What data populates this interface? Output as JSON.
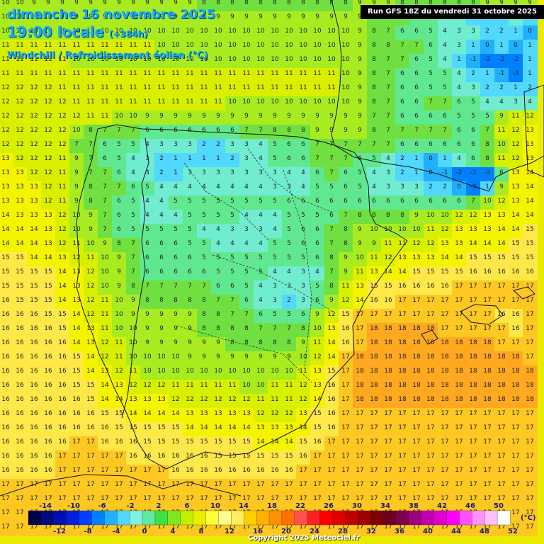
{
  "header": {
    "date": "dimanche 16 novembre 2025",
    "time": "19:00 locale",
    "lead": "(+384h)",
    "parameter": "Windchill / Refroidissement éolien (°C)",
    "run": "Run GFS 18Z du vendredi 31 octobre 2025"
  },
  "legend": {
    "unit": "(°C)",
    "top_labels": [
      "-14",
      "-10",
      "-6",
      "-2",
      "2",
      "6",
      "10",
      "14",
      "18",
      "22",
      "26",
      "30",
      "34",
      "38",
      "42",
      "46",
      "50"
    ],
    "bottom_labels": [
      "-12",
      "-8",
      "-4",
      "0",
      "4",
      "8",
      "12",
      "16",
      "20",
      "24",
      "28",
      "32",
      "36",
      "40",
      "44",
      "48",
      "52"
    ],
    "colors": [
      "#00004a",
      "#000a80",
      "#0010b0",
      "#0020e0",
      "#0040ff",
      "#0080ff",
      "#20b0ff",
      "#50d8ff",
      "#80f0e0",
      "#60e8a0",
      "#40e040",
      "#80e820",
      "#c0f000",
      "#e8f000",
      "#ffff40",
      "#ffff90",
      "#ffee60",
      "#ffd000",
      "#ffb000",
      "#ff9000",
      "#ff7000",
      "#ff5050",
      "#ff2020",
      "#ff0000",
      "#e00000",
      "#c00000",
      "#a00000",
      "#800000",
      "#700020",
      "#800050",
      "#a00080",
      "#c000b0",
      "#e000d0",
      "#ff00ff",
      "#ff50ff",
      "#ff90ff",
      "#ffc0ff",
      "#ffffff"
    ]
  },
  "grid_rows": [
    [
      "10",
      "10",
      "9",
      "9",
      "9",
      "9",
      "9",
      "9",
      "9",
      "9",
      "9",
      "9",
      "9",
      "9",
      "8",
      "8",
      "8",
      "8",
      "8",
      "8",
      "8",
      "8",
      "8",
      "8",
      "8",
      "9",
      "9",
      "9",
      "8",
      "8",
      "8",
      "8",
      "8",
      "8",
      "9",
      "9",
      "9",
      "9"
    ],
    [
      "10",
      "10",
      "10",
      "10",
      "9",
      "9",
      "9",
      "9",
      "9",
      "9",
      "9",
      "9",
      "9",
      "9",
      "9",
      "9",
      "9",
      "9",
      "9",
      "9",
      "9",
      "9",
      "9",
      "9",
      "9",
      "9",
      "8",
      "7",
      "7",
      "6",
      "5",
      "4",
      "4",
      "2",
      "2",
      "1",
      "3",
      "1"
    ],
    [
      "10",
      "10",
      "10",
      "10",
      "10",
      "10",
      "10",
      "10",
      "10",
      "10",
      "10",
      "10",
      "10",
      "10",
      "10",
      "10",
      "10",
      "10",
      "10",
      "10",
      "10",
      "10",
      "10",
      "10",
      "10",
      "9",
      "8",
      "7",
      "6",
      "6",
      "5",
      "4",
      "3",
      "3",
      "2",
      "2",
      "1",
      "0"
    ],
    [
      "11",
      "11",
      "11",
      "11",
      "11",
      "11",
      "11",
      "11",
      "11",
      "11",
      "11",
      "10",
      "10",
      "10",
      "10",
      "10",
      "10",
      "10",
      "10",
      "10",
      "10",
      "10",
      "10",
      "10",
      "10",
      "9",
      "8",
      "8",
      "7",
      "7",
      "6",
      "4",
      "3",
      "1",
      "0",
      "1",
      "0",
      "1"
    ],
    [
      "11",
      "11",
      "11",
      "11",
      "11",
      "10",
      "10",
      "10",
      "10",
      "10",
      "10",
      "10",
      "10",
      "10",
      "10",
      "10",
      "10",
      "10",
      "10",
      "10",
      "10",
      "10",
      "10",
      "10",
      "10",
      "9",
      "8",
      "7",
      "7",
      "6",
      "5",
      "4",
      "1",
      "-1",
      "-2",
      "-2",
      "-2",
      "1"
    ],
    [
      "11",
      "11",
      "11",
      "11",
      "11",
      "11",
      "11",
      "11",
      "11",
      "11",
      "11",
      "11",
      "11",
      "11",
      "11",
      "11",
      "11",
      "11",
      "11",
      "11",
      "11",
      "11",
      "11",
      "11",
      "10",
      "9",
      "8",
      "7",
      "6",
      "6",
      "5",
      "5",
      "4",
      "2",
      "1",
      "-1",
      "-3",
      "1"
    ],
    [
      "12",
      "12",
      "12",
      "12",
      "11",
      "11",
      "11",
      "11",
      "11",
      "11",
      "11",
      "11",
      "11",
      "11",
      "11",
      "11",
      "11",
      "11",
      "11",
      "11",
      "11",
      "11",
      "11",
      "11",
      "10",
      "9",
      "8",
      "7",
      "6",
      "6",
      "5",
      "5",
      "4",
      "3",
      "2",
      "2",
      "1",
      "2"
    ],
    [
      "12",
      "12",
      "12",
      "12",
      "12",
      "11",
      "11",
      "11",
      "11",
      "11",
      "11",
      "11",
      "11",
      "11",
      "11",
      "11",
      "10",
      "10",
      "10",
      "10",
      "10",
      "10",
      "10",
      "10",
      "10",
      "9",
      "8",
      "7",
      "6",
      "6",
      "7",
      "7",
      "6",
      "5",
      "4",
      "4",
      "3",
      "4"
    ],
    [
      "12",
      "12",
      "12",
      "12",
      "12",
      "12",
      "11",
      "11",
      "10",
      "10",
      "9",
      "9",
      "9",
      "9",
      "9",
      "9",
      "9",
      "9",
      "9",
      "9",
      "9",
      "9",
      "9",
      "9",
      "9",
      "9",
      "7",
      "7",
      "6",
      "6",
      "6",
      "6",
      "5",
      "5",
      "5",
      "9",
      "11",
      "12"
    ],
    [
      "12",
      "12",
      "12",
      "12",
      "12",
      "10",
      "8",
      "7",
      "7",
      "7",
      "6",
      "6",
      "6",
      "6",
      "6",
      "6",
      "6",
      "7",
      "7",
      "8",
      "8",
      "8",
      "9",
      "9",
      "9",
      "9",
      "8",
      "7",
      "7",
      "7",
      "7",
      "7",
      "6",
      "6",
      "7",
      "11",
      "12",
      "13"
    ],
    [
      "12",
      "12",
      "12",
      "12",
      "12",
      "7",
      "7",
      "6",
      "5",
      "5",
      "4",
      "3",
      "3",
      "3",
      "2",
      "2",
      "3",
      "3",
      "4",
      "5",
      "6",
      "6",
      "7",
      "7",
      "7",
      "7",
      "7",
      "7",
      "6",
      "6",
      "6",
      "6",
      "6",
      "6",
      "8",
      "10",
      "12",
      "13"
    ],
    [
      "13",
      "12",
      "12",
      "12",
      "11",
      "9",
      "7",
      "6",
      "5",
      "4",
      "3",
      "2",
      "1",
      "1",
      "1",
      "1",
      "2",
      "3",
      "4",
      "5",
      "6",
      "6",
      "7",
      "7",
      "7",
      "6",
      "5",
      "4",
      "2",
      "1",
      "0",
      "1",
      "4",
      "6",
      "8",
      "11",
      "12",
      "13"
    ],
    [
      "13",
      "13",
      "12",
      "12",
      "11",
      "9",
      "7",
      "7",
      "6",
      "4",
      "3",
      "2",
      "1",
      "3",
      "3",
      "3",
      "3",
      "3",
      "3",
      "3",
      "4",
      "4",
      "6",
      "7",
      "6",
      "5",
      "4",
      "3",
      "2",
      "1",
      "0",
      "-1",
      "-2",
      "-3",
      "-3",
      "6",
      "13",
      "14"
    ],
    [
      "13",
      "13",
      "13",
      "12",
      "11",
      "9",
      "8",
      "7",
      "7",
      "6",
      "5",
      "4",
      "4",
      "4",
      "4",
      "4",
      "4",
      "4",
      "4",
      "3",
      "3",
      "4",
      "5",
      "5",
      "6",
      "5",
      "4",
      "3",
      "3",
      "3",
      "2",
      "2",
      "0",
      "-3",
      "1",
      "9",
      "13",
      "14"
    ],
    [
      "13",
      "13",
      "13",
      "12",
      "11",
      "9",
      "8",
      "7",
      "6",
      "5",
      "4",
      "4",
      "5",
      "5",
      "5",
      "5",
      "5",
      "5",
      "5",
      "5",
      "6",
      "6",
      "6",
      "6",
      "6",
      "6",
      "6",
      "6",
      "6",
      "6",
      "6",
      "6",
      "6",
      "7",
      "10",
      "12",
      "13",
      "14"
    ],
    [
      "14",
      "13",
      "13",
      "13",
      "12",
      "10",
      "9",
      "7",
      "6",
      "5",
      "4",
      "4",
      "4",
      "5",
      "5",
      "5",
      "5",
      "4",
      "4",
      "4",
      "5",
      "5",
      "5",
      "6",
      "7",
      "8",
      "8",
      "8",
      "8",
      "9",
      "10",
      "10",
      "12",
      "12",
      "13",
      "13",
      "14",
      "14"
    ],
    [
      "14",
      "14",
      "14",
      "13",
      "12",
      "10",
      "9",
      "7",
      "6",
      "5",
      "5",
      "5",
      "5",
      "5",
      "4",
      "4",
      "3",
      "3",
      "3",
      "4",
      "5",
      "6",
      "6",
      "7",
      "8",
      "9",
      "10",
      "10",
      "10",
      "10",
      "11",
      "12",
      "13",
      "13",
      "13",
      "14",
      "14",
      "15"
    ],
    [
      "14",
      "14",
      "14",
      "13",
      "12",
      "11",
      "10",
      "9",
      "8",
      "7",
      "6",
      "6",
      "6",
      "5",
      "5",
      "4",
      "4",
      "4",
      "4",
      "5",
      "5",
      "6",
      "6",
      "7",
      "8",
      "9",
      "9",
      "11",
      "11",
      "12",
      "12",
      "13",
      "13",
      "14",
      "14",
      "14",
      "15",
      "15"
    ],
    [
      "15",
      "15",
      "14",
      "14",
      "13",
      "12",
      "11",
      "10",
      "9",
      "7",
      "6",
      "6",
      "6",
      "6",
      "5",
      "5",
      "5",
      "5",
      "5",
      "5",
      "5",
      "5",
      "6",
      "8",
      "9",
      "10",
      "11",
      "12",
      "13",
      "13",
      "13",
      "14",
      "14",
      "15",
      "15",
      "15",
      "15",
      "15"
    ],
    [
      "15",
      "15",
      "15",
      "15",
      "14",
      "13",
      "12",
      "10",
      "9",
      "7",
      "6",
      "6",
      "6",
      "6",
      "6",
      "5",
      "5",
      "5",
      "5",
      "4",
      "4",
      "3",
      "4",
      "7",
      "9",
      "11",
      "13",
      "14",
      "14",
      "15",
      "15",
      "15",
      "15",
      "16",
      "16",
      "16",
      "16",
      "16"
    ],
    [
      "15",
      "15",
      "15",
      "15",
      "14",
      "13",
      "12",
      "10",
      "9",
      "8",
      "7",
      "7",
      "7",
      "7",
      "7",
      "6",
      "6",
      "5",
      "4",
      "3",
      "3",
      "3",
      "5",
      "8",
      "11",
      "13",
      "15",
      "15",
      "16",
      "16",
      "16",
      "16",
      "17",
      "17",
      "17",
      "17",
      "17",
      "17"
    ],
    [
      "16",
      "15",
      "15",
      "15",
      "14",
      "13",
      "12",
      "11",
      "10",
      "9",
      "8",
      "8",
      "8",
      "8",
      "8",
      "7",
      "7",
      "6",
      "4",
      "3",
      "2",
      "3",
      "6",
      "9",
      "12",
      "14",
      "16",
      "16",
      "17",
      "17",
      "17",
      "17",
      "17",
      "17",
      "17",
      "17",
      "17",
      "17"
    ],
    [
      "16",
      "16",
      "16",
      "15",
      "15",
      "14",
      "12",
      "11",
      "10",
      "9",
      "9",
      "9",
      "9",
      "9",
      "8",
      "8",
      "7",
      "7",
      "6",
      "5",
      "5",
      "6",
      "9",
      "12",
      "15",
      "17",
      "17",
      "17",
      "17",
      "17",
      "17",
      "17",
      "17",
      "17",
      "17",
      "16",
      "16",
      "17"
    ],
    [
      "16",
      "16",
      "16",
      "16",
      "15",
      "14",
      "13",
      "11",
      "10",
      "10",
      "9",
      "9",
      "9",
      "9",
      "8",
      "8",
      "8",
      "8",
      "7",
      "7",
      "7",
      "8",
      "10",
      "13",
      "16",
      "17",
      "18",
      "18",
      "18",
      "18",
      "18",
      "17",
      "17",
      "17",
      "17",
      "17",
      "16",
      "17"
    ],
    [
      "16",
      "16",
      "16",
      "16",
      "16",
      "14",
      "13",
      "12",
      "11",
      "10",
      "9",
      "9",
      "9",
      "9",
      "9",
      "9",
      "8",
      "8",
      "8",
      "8",
      "8",
      "9",
      "11",
      "14",
      "16",
      "17",
      "18",
      "18",
      "18",
      "18",
      "18",
      "18",
      "18",
      "18",
      "18",
      "17",
      "17",
      "17"
    ],
    [
      "16",
      "16",
      "16",
      "16",
      "16",
      "15",
      "14",
      "12",
      "11",
      "10",
      "10",
      "10",
      "10",
      "9",
      "9",
      "9",
      "9",
      "9",
      "9",
      "9",
      "9",
      "10",
      "12",
      "14",
      "17",
      "18",
      "18",
      "18",
      "18",
      "18",
      "18",
      "18",
      "18",
      "18",
      "18",
      "18",
      "18",
      "17"
    ],
    [
      "16",
      "16",
      "16",
      "16",
      "16",
      "15",
      "14",
      "13",
      "12",
      "11",
      "10",
      "10",
      "10",
      "10",
      "10",
      "10",
      "10",
      "10",
      "10",
      "10",
      "10",
      "11",
      "13",
      "15",
      "17",
      "18",
      "18",
      "18",
      "18",
      "18",
      "18",
      "18",
      "18",
      "18",
      "18",
      "18",
      "18",
      "18"
    ],
    [
      "16",
      "16",
      "16",
      "16",
      "16",
      "15",
      "15",
      "14",
      "13",
      "12",
      "12",
      "12",
      "11",
      "11",
      "11",
      "11",
      "11",
      "10",
      "10",
      "11",
      "11",
      "12",
      "13",
      "16",
      "17",
      "18",
      "18",
      "18",
      "18",
      "18",
      "18",
      "18",
      "18",
      "18",
      "18",
      "18",
      "18",
      "18"
    ],
    [
      "16",
      "16",
      "16",
      "16",
      "16",
      "16",
      "15",
      "14",
      "14",
      "13",
      "13",
      "13",
      "12",
      "12",
      "12",
      "12",
      "12",
      "12",
      "11",
      "11",
      "11",
      "12",
      "14",
      "16",
      "17",
      "18",
      "18",
      "18",
      "18",
      "18",
      "18",
      "18",
      "18",
      "18",
      "18",
      "18",
      "18",
      "18"
    ],
    [
      "16",
      "16",
      "16",
      "16",
      "16",
      "16",
      "16",
      "15",
      "15",
      "14",
      "14",
      "14",
      "14",
      "13",
      "13",
      "13",
      "13",
      "13",
      "12",
      "12",
      "12",
      "13",
      "15",
      "16",
      "17",
      "17",
      "17",
      "17",
      "17",
      "17",
      "17",
      "17",
      "17",
      "17",
      "17",
      "17",
      "17",
      "17"
    ],
    [
      "16",
      "16",
      "16",
      "16",
      "16",
      "16",
      "16",
      "16",
      "15",
      "15",
      "15",
      "15",
      "15",
      "14",
      "14",
      "14",
      "14",
      "14",
      "13",
      "13",
      "13",
      "14",
      "15",
      "16",
      "17",
      "17",
      "17",
      "17",
      "17",
      "17",
      "17",
      "17",
      "17",
      "17",
      "17",
      "17",
      "17",
      "17"
    ],
    [
      "16",
      "16",
      "16",
      "16",
      "16",
      "17",
      "17",
      "16",
      "16",
      "16",
      "15",
      "15",
      "15",
      "15",
      "15",
      "15",
      "15",
      "15",
      "14",
      "14",
      "14",
      "15",
      "16",
      "17",
      "17",
      "17",
      "17",
      "17",
      "17",
      "17",
      "17",
      "17",
      "17",
      "17",
      "17",
      "17",
      "17",
      "17"
    ],
    [
      "16",
      "16",
      "16",
      "16",
      "17",
      "17",
      "17",
      "17",
      "17",
      "16",
      "16",
      "16",
      "16",
      "16",
      "16",
      "15",
      "15",
      "15",
      "15",
      "15",
      "15",
      "16",
      "17",
      "17",
      "17",
      "17",
      "17",
      "17",
      "17",
      "17",
      "17",
      "17",
      "17",
      "17",
      "17",
      "17",
      "17",
      "17"
    ],
    [
      "16",
      "16",
      "16",
      "16",
      "17",
      "17",
      "17",
      "17",
      "17",
      "17",
      "17",
      "17",
      "16",
      "16",
      "16",
      "16",
      "16",
      "16",
      "16",
      "16",
      "16",
      "17",
      "17",
      "17",
      "17",
      "17",
      "17",
      "17",
      "17",
      "17",
      "17",
      "17",
      "17",
      "17",
      "17",
      "17",
      "17",
      "17"
    ],
    [
      "17",
      "17",
      "17",
      "17",
      "17",
      "17",
      "17",
      "17",
      "17",
      "17",
      "17",
      "17",
      "17",
      "17",
      "17",
      "17",
      "17",
      "17",
      "17",
      "17",
      "17",
      "17",
      "17",
      "17",
      "17",
      "17",
      "17",
      "17",
      "17",
      "17",
      "17",
      "17",
      "17",
      "17",
      "17",
      "17",
      "17",
      "17"
    ],
    [
      "17",
      "17",
      "17",
      "17",
      "17",
      "17",
      "17",
      "17",
      "17",
      "17",
      "17",
      "17",
      "17",
      "17",
      "17",
      "17",
      "17",
      "17",
      "17",
      "17",
      "17",
      "17",
      "17",
      "17",
      "17",
      "17",
      "17",
      "17",
      "17",
      "17",
      "17",
      "17",
      "17",
      "17",
      "17",
      "17",
      "17",
      "17"
    ],
    [
      "17",
      "17",
      "17",
      "17",
      "17",
      "17",
      "17",
      "17",
      "17",
      "17",
      "17",
      "17",
      "17",
      "17",
      "17",
      "17",
      "17",
      "17",
      "17",
      "17",
      "17",
      "17",
      "17",
      "17",
      "17",
      "17",
      "17",
      "17",
      "17",
      "17",
      "17",
      "17",
      "17",
      "17",
      "17",
      "17",
      "17",
      "17"
    ],
    [
      "17",
      "17",
      "17",
      "17",
      "17",
      "17",
      "17",
      "17",
      "17",
      "17",
      "17",
      "17",
      "17",
      "17",
      "17",
      "17",
      "17",
      "17",
      "17",
      "17",
      "17",
      "17",
      "17",
      "17",
      "17",
      "17",
      "17",
      "17",
      "17",
      "17",
      "17",
      "17",
      "17",
      "17",
      "17",
      "17",
      "17",
      "17"
    ]
  ],
  "copyright": "Copyright 2025 Meteociel.fr"
}
